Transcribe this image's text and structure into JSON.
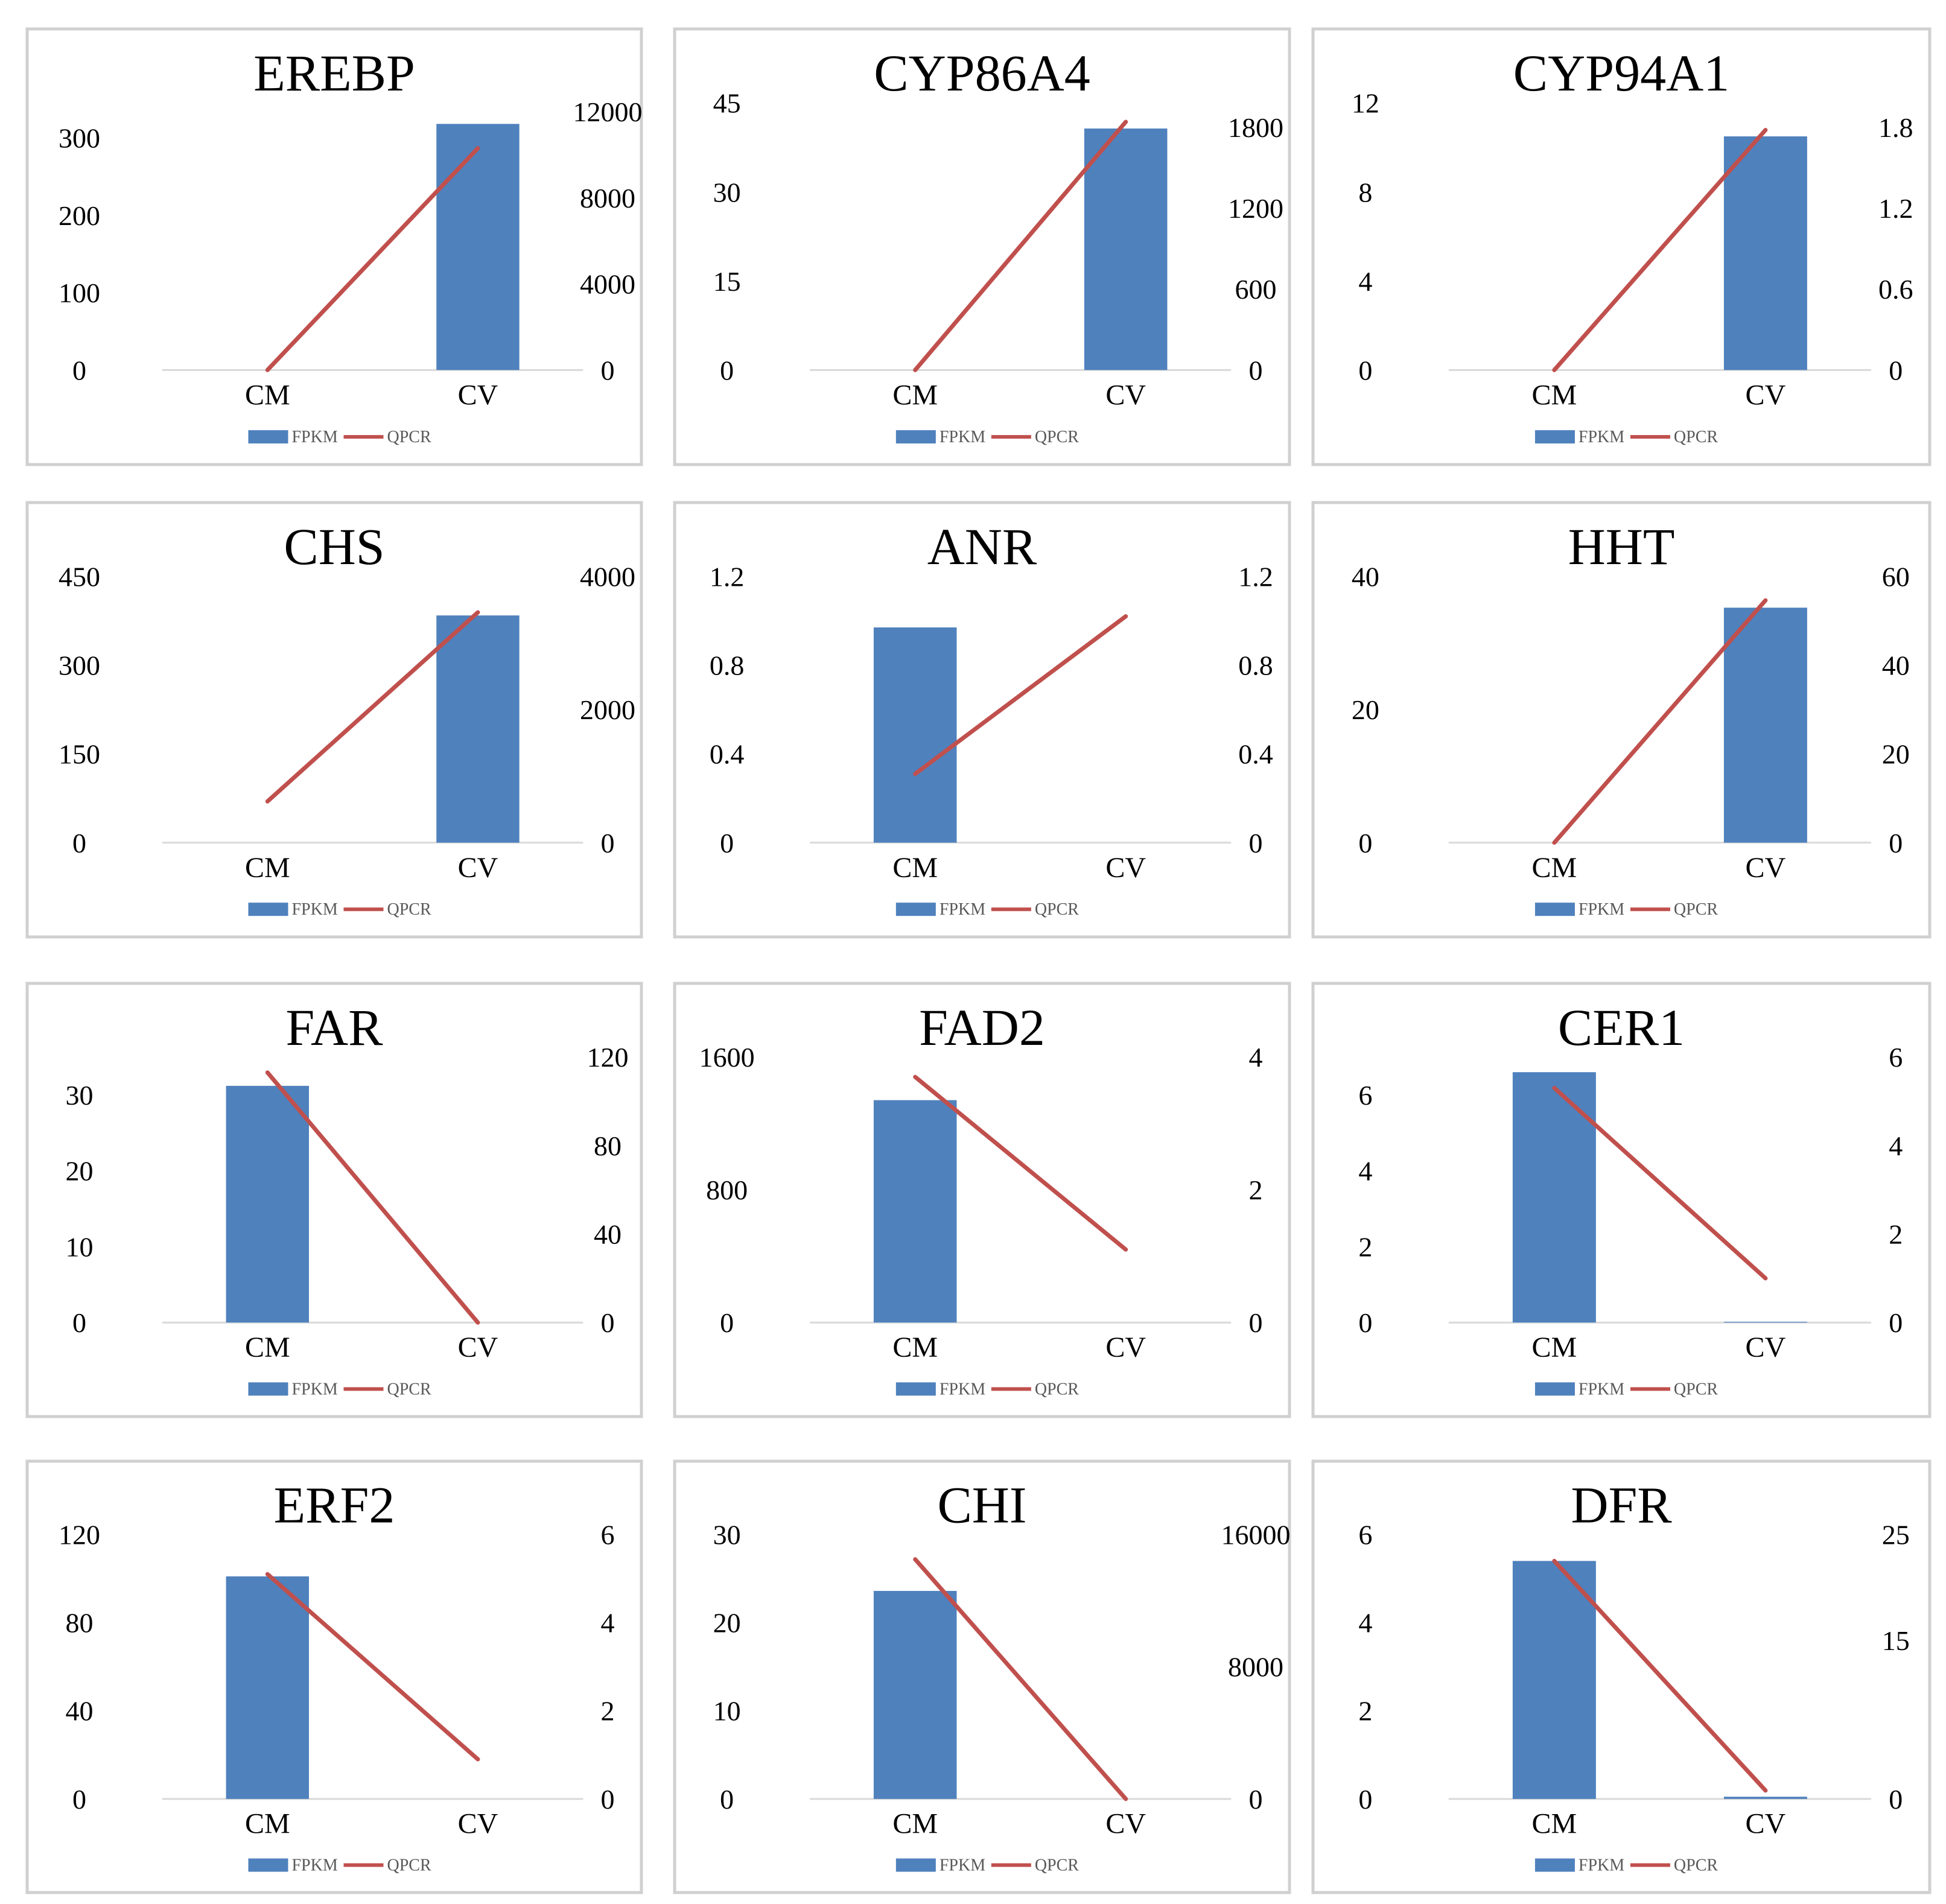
{
  "chart_data": [
    {
      "type": "bar+line",
      "title": "EREBP",
      "categories": [
        "CM",
        "CV"
      ],
      "series": [
        {
          "name": "FPKM",
          "kind": "bar",
          "axis": "left",
          "color": "#4F81BD",
          "values": [
            0,
            318
          ]
        },
        {
          "name": "QPCR",
          "kind": "line",
          "axis": "right",
          "color": "#C0504D",
          "values": [
            0,
            10300
          ]
        }
      ],
      "left_axis": {
        "ticks": [
          0,
          100,
          200,
          300
        ],
        "tick_labels": [
          "0",
          "100",
          "200",
          "300"
        ],
        "max": 345
      },
      "right_axis": {
        "ticks": [
          0,
          4000,
          8000,
          12000
        ],
        "tick_labels": [
          "0",
          "4000",
          "8000",
          "12000"
        ],
        "max": 12400
      }
    },
    {
      "type": "bar+line",
      "title": "CYP86A4",
      "categories": [
        "CM",
        "CV"
      ],
      "series": [
        {
          "name": "FPKM",
          "kind": "bar",
          "axis": "left",
          "color": "#4F81BD",
          "values": [
            0,
            40.7
          ]
        },
        {
          "name": "QPCR",
          "kind": "line",
          "axis": "right",
          "color": "#C0504D",
          "values": [
            0,
            1840
          ]
        }
      ],
      "left_axis": {
        "ticks": [
          0,
          15,
          30,
          45
        ],
        "tick_labels": [
          "0",
          "15",
          "30",
          "45"
        ],
        "max": 45
      },
      "right_axis": {
        "ticks": [
          0,
          600,
          1200,
          1800
        ],
        "tick_labels": [
          "0",
          "600",
          "1200",
          "1800"
        ],
        "max": 1980
      }
    },
    {
      "type": "bar+line",
      "title": "CYP94A1",
      "categories": [
        "CM",
        "CV"
      ],
      "series": [
        {
          "name": "FPKM",
          "kind": "bar",
          "axis": "left",
          "color": "#4F81BD",
          "values": [
            0,
            10.5
          ]
        },
        {
          "name": "QPCR",
          "kind": "line",
          "axis": "right",
          "color": "#C0504D",
          "values": [
            0,
            1.78
          ]
        }
      ],
      "left_axis": {
        "ticks": [
          0,
          4,
          8,
          12
        ],
        "tick_labels": [
          "0",
          "4",
          "8",
          "12"
        ],
        "max": 12
      },
      "right_axis": {
        "ticks": [
          0,
          0.6,
          1.2,
          1.8
        ],
        "tick_labels": [
          "0",
          "0.6",
          "1.2",
          "1.8"
        ],
        "max": 1.98
      }
    },
    {
      "type": "bar+line",
      "title": "CHS",
      "categories": [
        "CM",
        "CV"
      ],
      "series": [
        {
          "name": "FPKM",
          "kind": "bar",
          "axis": "left",
          "color": "#4F81BD",
          "values": [
            0,
            384
          ]
        },
        {
          "name": "QPCR",
          "kind": "line",
          "axis": "right",
          "color": "#C0504D",
          "values": [
            620,
            3460
          ]
        }
      ],
      "left_axis": {
        "ticks": [
          0,
          150,
          300,
          450
        ],
        "tick_labels": [
          "0",
          "150",
          "300",
          "450"
        ],
        "max": 450
      },
      "right_axis": {
        "ticks": [
          0,
          2000,
          4000
        ],
        "tick_labels": [
          "0",
          "2000",
          "4000"
        ],
        "max": 4000
      }
    },
    {
      "type": "bar+line",
      "title": "ANR",
      "categories": [
        "CM",
        "CV"
      ],
      "series": [
        {
          "name": "FPKM",
          "kind": "bar",
          "axis": "left",
          "color": "#4F81BD",
          "values": [
            0.97,
            0
          ]
        },
        {
          "name": "QPCR",
          "kind": "line",
          "axis": "right",
          "color": "#C0504D",
          "values": [
            0.31,
            1.02
          ]
        }
      ],
      "left_axis": {
        "ticks": [
          0,
          0.4,
          0.8,
          1.2
        ],
        "tick_labels": [
          "0",
          "0.4",
          "0.8",
          "1.2"
        ],
        "max": 1.2
      },
      "right_axis": {
        "ticks": [
          0,
          0.4,
          0.8,
          1.2
        ],
        "tick_labels": [
          "0",
          "0.4",
          "0.8",
          "1.2"
        ],
        "max": 1.2
      }
    },
    {
      "type": "bar+line",
      "title": "HHT",
      "categories": [
        "CM",
        "CV"
      ],
      "series": [
        {
          "name": "FPKM",
          "kind": "bar",
          "axis": "left",
          "color": "#4F81BD",
          "values": [
            0,
            35.3
          ]
        },
        {
          "name": "QPCR",
          "kind": "line",
          "axis": "right",
          "color": "#C0504D",
          "values": [
            0,
            54.6
          ]
        }
      ],
      "left_axis": {
        "ticks": [
          0,
          20,
          40
        ],
        "tick_labels": [
          "0",
          "20",
          "40"
        ],
        "max": 40
      },
      "right_axis": {
        "ticks": [
          0,
          20,
          40,
          60
        ],
        "tick_labels": [
          "0",
          "20",
          "40",
          "60"
        ],
        "max": 60
      }
    },
    {
      "type": "bar+line",
      "title": "FAR",
      "categories": [
        "CM",
        "CV"
      ],
      "series": [
        {
          "name": "FPKM",
          "kind": "bar",
          "axis": "left",
          "color": "#4F81BD",
          "values": [
            31.2,
            0
          ]
        },
        {
          "name": "QPCR",
          "kind": "line",
          "axis": "right",
          "color": "#C0504D",
          "values": [
            113,
            0
          ]
        }
      ],
      "left_axis": {
        "ticks": [
          0,
          10,
          20,
          30
        ],
        "tick_labels": [
          "0",
          "10",
          "20",
          "30"
        ],
        "max": 35
      },
      "right_axis": {
        "ticks": [
          0,
          40,
          80,
          120
        ],
        "tick_labels": [
          "0",
          "40",
          "80",
          "120"
        ],
        "max": 120
      }
    },
    {
      "type": "bar+line",
      "title": "FAD2",
      "categories": [
        "CM",
        "CV"
      ],
      "series": [
        {
          "name": "FPKM",
          "kind": "bar",
          "axis": "left",
          "color": "#4F81BD",
          "values": [
            1340,
            0
          ]
        },
        {
          "name": "QPCR",
          "kind": "line",
          "axis": "right",
          "color": "#C0504D",
          "values": [
            3.7,
            1.1
          ]
        }
      ],
      "left_axis": {
        "ticks": [
          0,
          800,
          1600
        ],
        "tick_labels": [
          "0",
          "800",
          "1600"
        ],
        "max": 1600
      },
      "right_axis": {
        "ticks": [
          0,
          2,
          4
        ],
        "tick_labels": [
          "0",
          "2",
          "4"
        ],
        "max": 4
      }
    },
    {
      "type": "bar+line",
      "title": "CER1",
      "categories": [
        "CM",
        "CV"
      ],
      "series": [
        {
          "name": "FPKM",
          "kind": "bar",
          "axis": "left",
          "color": "#4F81BD",
          "values": [
            6.6,
            0.02
          ]
        },
        {
          "name": "QPCR",
          "kind": "line",
          "axis": "right",
          "color": "#C0504D",
          "values": [
            5.3,
            1.0
          ]
        }
      ],
      "left_axis": {
        "ticks": [
          0,
          2,
          4,
          6
        ],
        "tick_labels": [
          "0",
          "2",
          "4",
          "6"
        ],
        "max": 7
      },
      "right_axis": {
        "ticks": [
          0,
          2,
          4,
          6
        ],
        "tick_labels": [
          "0",
          "2",
          "4",
          "6"
        ],
        "max": 6
      }
    },
    {
      "type": "bar+line",
      "title": "ERF2",
      "categories": [
        "CM",
        "CV"
      ],
      "series": [
        {
          "name": "FPKM",
          "kind": "bar",
          "axis": "left",
          "color": "#4F81BD",
          "values": [
            101,
            0
          ]
        },
        {
          "name": "QPCR",
          "kind": "line",
          "axis": "right",
          "color": "#C0504D",
          "values": [
            5.1,
            0.9
          ]
        }
      ],
      "left_axis": {
        "ticks": [
          0,
          40,
          80,
          120
        ],
        "tick_labels": [
          "0",
          "40",
          "80",
          "120"
        ],
        "max": 120
      },
      "right_axis": {
        "ticks": [
          0,
          2,
          4,
          6
        ],
        "tick_labels": [
          "0",
          "2",
          "4",
          "6"
        ],
        "max": 6
      }
    },
    {
      "type": "bar+line",
      "title": "CHI",
      "categories": [
        "CM",
        "CV"
      ],
      "series": [
        {
          "name": "FPKM",
          "kind": "bar",
          "axis": "left",
          "color": "#4F81BD",
          "values": [
            23.6,
            0
          ]
        },
        {
          "name": "QPCR",
          "kind": "line",
          "axis": "right",
          "color": "#C0504D",
          "values": [
            14500,
            0
          ]
        }
      ],
      "left_axis": {
        "ticks": [
          0,
          10,
          20,
          30
        ],
        "tick_labels": [
          "0",
          "10",
          "20",
          "30"
        ],
        "max": 30
      },
      "right_axis": {
        "ticks": [
          0,
          8000,
          16000
        ],
        "tick_labels": [
          "0",
          "8000",
          "16000"
        ],
        "max": 16000
      }
    },
    {
      "type": "bar+line",
      "title": "DFR",
      "categories": [
        "CM",
        "CV"
      ],
      "series": [
        {
          "name": "FPKM",
          "kind": "bar",
          "axis": "left",
          "color": "#4F81BD",
          "values": [
            5.4,
            0.05
          ]
        },
        {
          "name": "QPCR",
          "kind": "line",
          "axis": "right",
          "color": "#C0504D",
          "values": [
            22.5,
            0.8
          ]
        }
      ],
      "left_axis": {
        "ticks": [
          0,
          2,
          4,
          6
        ],
        "tick_labels": [
          "0",
          "2",
          "4",
          "6"
        ],
        "max": 6
      },
      "right_axis": {
        "ticks": [
          0,
          15,
          25
        ],
        "tick_labels": [
          "0",
          "15",
          "25"
        ],
        "max": 25
      }
    }
  ]
}
